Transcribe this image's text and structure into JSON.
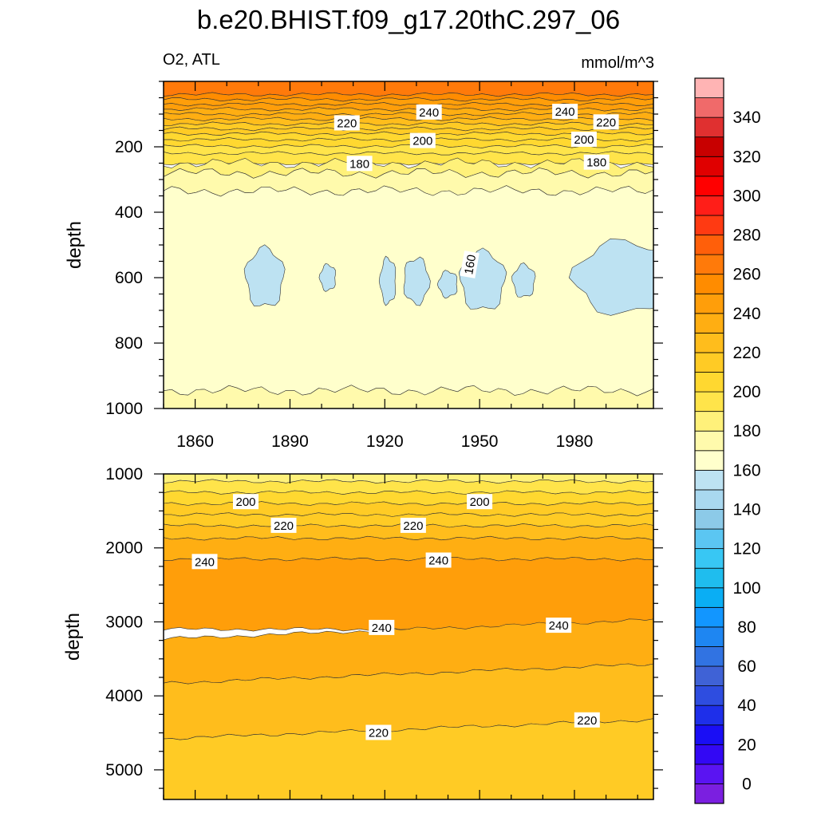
{
  "figure": {
    "title": "b.e20.BHIST.f09_g17.20thC.297_06",
    "variable_label": "O2, ATL",
    "units_label": "mmol/m^3"
  },
  "chart_data": [
    {
      "type": "contour",
      "panel": "upper",
      "xlabel": "",
      "ylabel": "depth",
      "xlim": [
        1850,
        2005
      ],
      "ylim": [
        1000,
        0
      ],
      "xticks": [
        1860,
        1890,
        1920,
        1950,
        1980
      ],
      "yticks": [
        200,
        400,
        600,
        800,
        1000
      ],
      "bands": [
        {
          "from": 0,
          "to": 40,
          "value": 265
        },
        {
          "from": 40,
          "to": 55,
          "value": 255
        },
        {
          "from": 55,
          "to": 70,
          "value": 248
        },
        {
          "from": 70,
          "to": 85,
          "value": 242
        },
        {
          "from": 85,
          "to": 100,
          "value": 236
        },
        {
          "from": 100,
          "to": 115,
          "value": 230
        },
        {
          "from": 115,
          "to": 130,
          "value": 225
        },
        {
          "from": 130,
          "to": 145,
          "value": 218
        },
        {
          "from": 145,
          "to": 160,
          "value": 213
        },
        {
          "from": 160,
          "to": 178,
          "value": 208
        },
        {
          "from": 178,
          "to": 198,
          "value": 203
        },
        {
          "from": 198,
          "to": 220,
          "value": 197
        },
        {
          "from": 220,
          "to": 250,
          "value": 190
        },
        {
          "from": 250,
          "to": 280,
          "value": 184
        },
        {
          "from": 280,
          "to": 335,
          "value": 175
        },
        {
          "from": 335,
          "to": 945,
          "value": 165
        },
        {
          "from": 945,
          "to": 1000,
          "value": 175
        }
      ],
      "contour_labels": [
        {
          "x": 1934,
          "y": 95,
          "text": "240"
        },
        {
          "x": 1977,
          "y": 93,
          "text": "240"
        },
        {
          "x": 1908,
          "y": 128,
          "text": "220"
        },
        {
          "x": 1990,
          "y": 125,
          "text": "220"
        },
        {
          "x": 1932,
          "y": 182,
          "text": "200"
        },
        {
          "x": 1983,
          "y": 178,
          "text": "200"
        },
        {
          "x": 1912,
          "y": 252,
          "text": "180"
        },
        {
          "x": 1987,
          "y": 248,
          "text": "180"
        },
        {
          "x": 1947,
          "y": 560,
          "text": "160"
        }
      ]
    },
    {
      "type": "contour",
      "panel": "lower",
      "xlabel": "",
      "ylabel": "depth",
      "xlim": [
        1850,
        2005
      ],
      "ylim": [
        5400,
        1000
      ],
      "xticks": [
        1860,
        1890,
        1920,
        1950,
        1980
      ],
      "yticks": [
        1000,
        2000,
        3000,
        4000,
        5000
      ],
      "bands": [
        {
          "from": 1000,
          "to": 1100,
          "value": 185
        },
        {
          "from": 1100,
          "to": 1250,
          "value": 195
        },
        {
          "from": 1250,
          "to": 1400,
          "value": 203
        },
        {
          "from": 1400,
          "to": 1550,
          "value": 210
        },
        {
          "from": 1550,
          "to": 1700,
          "value": 218
        },
        {
          "from": 1700,
          "to": 1870,
          "value": 225
        },
        {
          "from": 1870,
          "to": 2150,
          "value": 235
        },
        {
          "from": 2150,
          "to": 3100,
          "value": 245
        },
        {
          "from": 3100,
          "to": 3700,
          "value": 238
        },
        {
          "from": 3700,
          "to": 4450,
          "value": 228
        },
        {
          "from": 4450,
          "to": 5400,
          "value": 215
        }
      ],
      "contour_labels": [
        {
          "x": 1876,
          "y": 1380,
          "text": "200"
        },
        {
          "x": 1950,
          "y": 1380,
          "text": "200"
        },
        {
          "x": 1888,
          "y": 1700,
          "text": "220"
        },
        {
          "x": 1929,
          "y": 1700,
          "text": "220"
        },
        {
          "x": 1863,
          "y": 2190,
          "text": "240"
        },
        {
          "x": 1937,
          "y": 2170,
          "text": "240"
        },
        {
          "x": 1919,
          "y": 3080,
          "text": "240"
        },
        {
          "x": 1975,
          "y": 3050,
          "text": "240"
        },
        {
          "x": 1918,
          "y": 4500,
          "text": "220"
        },
        {
          "x": 1984,
          "y": 4330,
          "text": "220"
        }
      ]
    }
  ],
  "colorbar": {
    "levels": [
      0,
      10,
      20,
      30,
      40,
      50,
      60,
      70,
      80,
      90,
      100,
      110,
      120,
      130,
      140,
      150,
      160,
      170,
      180,
      190,
      200,
      210,
      220,
      230,
      240,
      250,
      260,
      270,
      280,
      290,
      300,
      310,
      320,
      330,
      340,
      350
    ],
    "colors": [
      "#7b1fe0",
      "#5a14f2",
      "#3308f4",
      "#1a0ef5",
      "#1e2fea",
      "#2e4de0",
      "#3f62d6",
      "#3173e2",
      "#1e86f2",
      "#1296ff",
      "#0aaef4",
      "#1fbdee",
      "#38c7f4",
      "#5bc6f2",
      "#8ccae8",
      "#a9d8ef",
      "#bde2f2",
      "#ffffcc",
      "#fffaac",
      "#fff17a",
      "#ffe44a",
      "#ffd830",
      "#ffcb25",
      "#ffbd1c",
      "#ffae12",
      "#ff9e0a",
      "#ff8c00",
      "#ff7a0a",
      "#ff5f0a",
      "#ff3a12",
      "#ff1e18",
      "#ff0000",
      "#e00000",
      "#c80000",
      "#e03030",
      "#f06a6a",
      "#ffb4b4"
    ],
    "labels": [
      "0",
      "20",
      "40",
      "60",
      "80",
      "100",
      "120",
      "140",
      "160",
      "180",
      "200",
      "220",
      "240",
      "260",
      "280",
      "300",
      "320",
      "340"
    ]
  }
}
